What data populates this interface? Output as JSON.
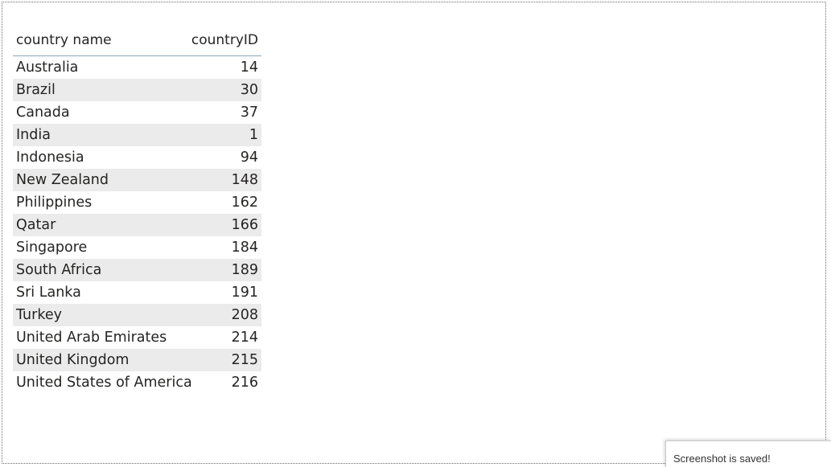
{
  "table": {
    "columns": {
      "name": "country name",
      "id": "countryID"
    },
    "rows": [
      {
        "name": "Australia",
        "id": "14"
      },
      {
        "name": "Brazil",
        "id": "30"
      },
      {
        "name": "Canada",
        "id": "37"
      },
      {
        "name": "India",
        "id": "1"
      },
      {
        "name": "Indonesia",
        "id": "94"
      },
      {
        "name": "New Zealand",
        "id": "148"
      },
      {
        "name": "Philippines",
        "id": "162"
      },
      {
        "name": "Qatar",
        "id": "166"
      },
      {
        "name": "Singapore",
        "id": "184"
      },
      {
        "name": "South Africa",
        "id": "189"
      },
      {
        "name": "Sri Lanka",
        "id": "191"
      },
      {
        "name": "Turkey",
        "id": "208"
      },
      {
        "name": "United Arab Emirates",
        "id": "214"
      },
      {
        "name": "United Kingdom",
        "id": "215"
      },
      {
        "name": "United States of America",
        "id": "216"
      }
    ]
  },
  "toast": {
    "message": "Screenshot is saved!"
  },
  "colors": {
    "alt_row": "#ebebeb",
    "header_rule": "#8fa8b8",
    "text": "#252423"
  }
}
